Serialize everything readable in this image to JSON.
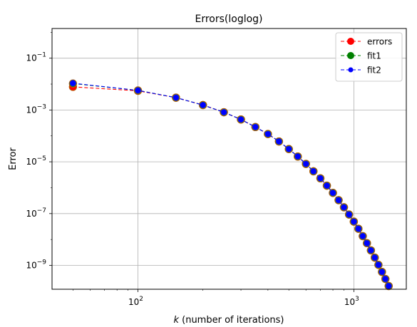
{
  "chart_data": {
    "type": "line",
    "title": "Errors(loglog)",
    "xlabel_italic": "k",
    "xlabel_rest": " (number of iterations)",
    "ylabel": "Error",
    "xscale": "log",
    "yscale": "log",
    "xlim": [
      40,
      1750
    ],
    "ylim": [
      1.2e-10,
      1.4
    ],
    "grid": true,
    "legend_placement": "top-right",
    "x_ticks": [
      {
        "value": 100,
        "base": "10",
        "exp": "2"
      },
      {
        "value": 1000,
        "base": "10",
        "exp": "3"
      }
    ],
    "y_ticks": [
      {
        "value": 0.1,
        "base": "10",
        "exp": "−1"
      },
      {
        "value": 0.001,
        "base": "10",
        "exp": "−3"
      },
      {
        "value": 1e-05,
        "base": "10",
        "exp": "−5"
      },
      {
        "value": 1e-07,
        "base": "10",
        "exp": "−7"
      },
      {
        "value": 1e-09,
        "base": "10",
        "exp": "−9"
      }
    ],
    "x": [
      50,
      100,
      150,
      200,
      250,
      300,
      350,
      400,
      450,
      500,
      550,
      600,
      650,
      700,
      750,
      800,
      850,
      900,
      950,
      1000,
      1050,
      1100,
      1150,
      1200,
      1250,
      1300,
      1350,
      1400,
      1450
    ],
    "series": [
      {
        "name": "errors",
        "color": "#ff0000",
        "marker_color": "#ff0000",
        "values": [
          0.0078,
          0.0055,
          0.003,
          0.00155,
          0.00082,
          0.00043,
          0.00022,
          0.000118,
          6.1e-05,
          3.1e-05,
          1.6e-05,
          8.3e-06,
          4.3e-06,
          2.3e-06,
          1.2e-06,
          6.3e-07,
          3.3e-07,
          1.75e-07,
          9.2e-08,
          4.9e-08,
          2.6e-08,
          1.35e-08,
          7.2e-09,
          3.8e-09,
          2e-09,
          1.05e-09,
          5.6e-10,
          3e-10,
          1.6e-10
        ]
      },
      {
        "name": "fit1",
        "color": "#008000",
        "marker_color": "#008000",
        "values": [
          0.0105,
          0.0057,
          0.003,
          0.00155,
          0.00082,
          0.00043,
          0.00022,
          0.000118,
          6.1e-05,
          3.1e-05,
          1.6e-05,
          8.3e-06,
          4.3e-06,
          2.3e-06,
          1.2e-06,
          6.3e-07,
          3.3e-07,
          1.75e-07,
          9.2e-08,
          4.9e-08,
          2.6e-08,
          1.35e-08,
          7.2e-09,
          3.8e-09,
          2e-09,
          1.05e-09,
          5.6e-10,
          3e-10,
          1.6e-10
        ]
      },
      {
        "name": "fit2",
        "color": "#0000ff",
        "marker_color": "#0000ff",
        "values": [
          0.0108,
          0.0057,
          0.003,
          0.00155,
          0.00082,
          0.00043,
          0.00022,
          0.000118,
          6.1e-05,
          3.1e-05,
          1.6e-05,
          8.3e-06,
          4.3e-06,
          2.3e-06,
          1.2e-06,
          6.3e-07,
          3.3e-07,
          1.75e-07,
          9.2e-08,
          4.9e-08,
          2.6e-08,
          1.35e-08,
          7.2e-09,
          3.8e-09,
          2e-09,
          1.05e-09,
          5.6e-10,
          3e-10,
          1.6e-10
        ]
      }
    ]
  }
}
